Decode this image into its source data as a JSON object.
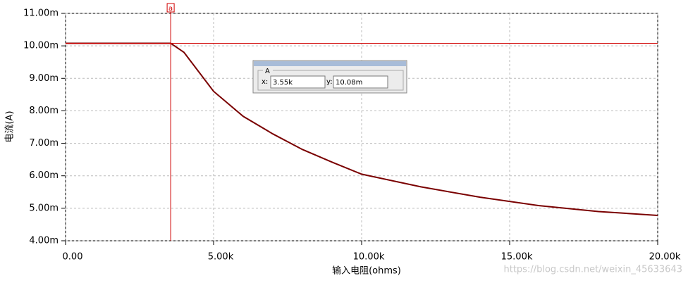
{
  "chart_data": {
    "type": "line",
    "xlabel": "输入电阻(ohms)",
    "ylabel": "电流(A)",
    "x": [
      0,
      3550,
      4000,
      5000,
      6000,
      7000,
      8000,
      9000,
      10000,
      12000,
      14000,
      16000,
      18000,
      20000
    ],
    "series": [
      {
        "name": "电流",
        "color": "#7a0000",
        "values": [
          0.01008,
          0.01008,
          0.0098,
          0.0086,
          0.00783,
          0.00729,
          0.00681,
          0.00642,
          0.00605,
          0.00566,
          0.00534,
          0.00508,
          0.0049,
          0.00478
        ]
      }
    ],
    "xlim": [
      0,
      20000
    ],
    "ylim": [
      0.004,
      0.011
    ],
    "xticks": [
      {
        "value": 0,
        "label": "0.00"
      },
      {
        "value": 5000,
        "label": "5.00k"
      },
      {
        "value": 10000,
        "label": "10.00k"
      },
      {
        "value": 15000,
        "label": "15.00k"
      },
      {
        "value": 20000,
        "label": "20.00k"
      }
    ],
    "yticks": [
      {
        "value": 0.004,
        "label": "4.00m"
      },
      {
        "value": 0.005,
        "label": "5.00m"
      },
      {
        "value": 0.006,
        "label": "6.00m"
      },
      {
        "value": 0.007,
        "label": "7.00m"
      },
      {
        "value": 0.008,
        "label": "8.00m"
      },
      {
        "value": 0.009,
        "label": "9.00m"
      },
      {
        "value": 0.01,
        "label": "10.00m"
      },
      {
        "value": 0.011,
        "label": "11.00m"
      }
    ],
    "grid": true,
    "cursor": {
      "x": 3550,
      "y": 0.01008,
      "color": "#d00000",
      "marker": "a",
      "box_title": "A",
      "x_label": "x:",
      "x_text": "3.55k",
      "y_label": "y:",
      "y_text": "10.08m"
    },
    "watermark": "https://blog.csdn.net/weixin_45633643"
  }
}
